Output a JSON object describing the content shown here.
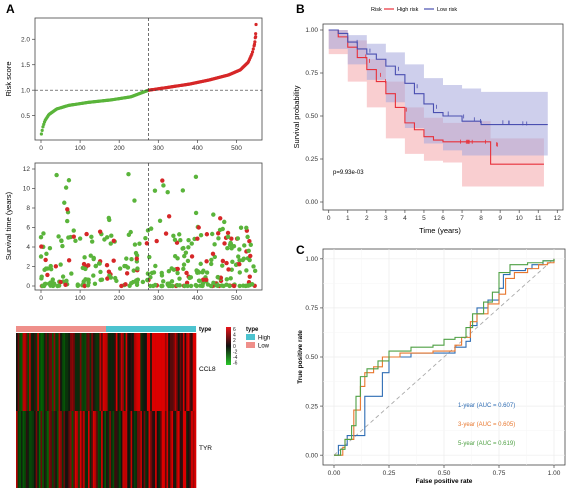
{
  "panels": {
    "A": "A",
    "B": "B",
    "C": "C"
  },
  "colors": {
    "high": "#d62728",
    "low": "#5ab43b",
    "km_high": "#e8303a",
    "km_low": "#4a4fb0",
    "km_high_band": "#f4a6a9",
    "km_low_band": "#a5a8dd",
    "roc_1": "#2f6db4",
    "roc_3": "#e8772e",
    "roc_5": "#4fa044",
    "heat_type_high": "#4cc3cf",
    "heat_type_low": "#ef8f8a"
  },
  "chart_data": [
    {
      "type": "scatter",
      "id": "risk-score",
      "ylabel": "Risk score",
      "xticks": [
        0,
        100,
        200,
        300,
        400,
        500
      ],
      "yticks": [
        "0.5",
        "1.0",
        "1.5",
        "2.0"
      ],
      "xlim": [
        0,
        555
      ],
      "ylim": [
        0.1,
        2.3
      ],
      "cutoff_x": 275,
      "cutoff_y": 1.0,
      "n_low": 275,
      "n_high": 275,
      "curve_low": [
        [
          1,
          0.14
        ],
        [
          5,
          0.28
        ],
        [
          10,
          0.4
        ],
        [
          20,
          0.52
        ],
        [
          40,
          0.63
        ],
        [
          70,
          0.7
        ],
        [
          120,
          0.76
        ],
        [
          180,
          0.81
        ],
        [
          230,
          0.87
        ],
        [
          275,
          1.0
        ]
      ],
      "curve_high": [
        [
          276,
          1.0
        ],
        [
          320,
          1.05
        ],
        [
          380,
          1.12
        ],
        [
          430,
          1.2
        ],
        [
          480,
          1.3
        ],
        [
          510,
          1.4
        ],
        [
          530,
          1.55
        ],
        [
          540,
          1.72
        ],
        [
          546,
          1.9
        ],
        [
          549,
          2.05
        ],
        [
          550,
          2.2
        ]
      ]
    },
    {
      "type": "scatter",
      "id": "survival-time",
      "ylabel": "Survival time (years)",
      "xticks": [
        0,
        100,
        200,
        300,
        400,
        500
      ],
      "yticks": [
        "0",
        "2",
        "4",
        "6",
        "8",
        "10",
        "12"
      ],
      "xlim": [
        0,
        555
      ],
      "ylim": [
        0,
        12
      ],
      "cutoff_x": 275
    },
    {
      "type": "heatmap",
      "id": "expression-heatmap",
      "rows": [
        "CCL8",
        "TYR"
      ],
      "annotation": {
        "title": "type",
        "levels": [
          "High",
          "Low"
        ]
      },
      "scale_ticks": [
        "6",
        "4",
        "2",
        "0",
        "-2",
        "-4",
        "-6"
      ],
      "n_low": 275,
      "n_high": 275
    },
    {
      "type": "line",
      "id": "km-curve",
      "title": "Risk",
      "legend": [
        "High risk",
        "Low risk"
      ],
      "xlabel": "Time (years)",
      "ylabel": "Survival probability",
      "xticks": [
        0,
        1,
        2,
        3,
        4,
        5,
        6,
        7,
        8,
        9,
        10,
        11,
        12
      ],
      "yticks": [
        "0.00",
        "0.25",
        "0.50",
        "0.75",
        "1.00"
      ],
      "xlim": [
        -0.3,
        12.3
      ],
      "ylim": [
        0,
        1.0
      ],
      "pvalue": "p=9.93e-03",
      "series": [
        {
          "name": "High risk",
          "steps": [
            [
              0,
              1.0
            ],
            [
              0.5,
              0.96
            ],
            [
              1,
              0.9
            ],
            [
              1.5,
              0.84
            ],
            [
              2,
              0.77
            ],
            [
              2.5,
              0.7
            ],
            [
              3,
              0.63
            ],
            [
              3.5,
              0.55
            ],
            [
              4,
              0.46
            ],
            [
              4.5,
              0.42
            ],
            [
              5,
              0.38
            ],
            [
              5.5,
              0.36
            ],
            [
              6,
              0.35
            ],
            [
              7,
              0.35
            ],
            [
              8.5,
              0.22
            ],
            [
              11.3,
              0.22
            ]
          ],
          "upper": [
            [
              0,
              1.0
            ],
            [
              1,
              0.94
            ],
            [
              2,
              0.83
            ],
            [
              3,
              0.7
            ],
            [
              4,
              0.55
            ],
            [
              5,
              0.49
            ],
            [
              6,
              0.46
            ],
            [
              7,
              0.47
            ],
            [
              8.5,
              0.37
            ],
            [
              11.3,
              0.37
            ]
          ],
          "lower": [
            [
              0,
              1.0
            ],
            [
              1,
              0.86
            ],
            [
              2,
              0.7
            ],
            [
              3,
              0.55
            ],
            [
              4,
              0.37
            ],
            [
              5,
              0.28
            ],
            [
              6,
              0.24
            ],
            [
              7,
              0.23
            ],
            [
              8.5,
              0.09
            ],
            [
              11.3,
              0.09
            ]
          ]
        },
        {
          "name": "Low risk",
          "steps": [
            [
              0,
              1.0
            ],
            [
              0.5,
              0.98
            ],
            [
              1,
              0.93
            ],
            [
              1.5,
              0.89
            ],
            [
              2,
              0.86
            ],
            [
              2.5,
              0.83
            ],
            [
              3,
              0.79
            ],
            [
              3.5,
              0.74
            ],
            [
              4,
              0.69
            ],
            [
              4.5,
              0.63
            ],
            [
              5,
              0.57
            ],
            [
              5.5,
              0.52
            ],
            [
              6,
              0.5
            ],
            [
              7,
              0.47
            ],
            [
              8,
              0.45
            ],
            [
              11.5,
              0.45
            ]
          ],
          "upper": [
            [
              0,
              1.0
            ],
            [
              1,
              0.97
            ],
            [
              2,
              0.92
            ],
            [
              3,
              0.87
            ],
            [
              4,
              0.8
            ],
            [
              5,
              0.72
            ],
            [
              6,
              0.68
            ],
            [
              7,
              0.66
            ],
            [
              8,
              0.64
            ],
            [
              11.5,
              0.64
            ]
          ],
          "lower": [
            [
              0,
              1.0
            ],
            [
              1,
              0.89
            ],
            [
              2,
              0.8
            ],
            [
              3,
              0.71
            ],
            [
              4,
              0.58
            ],
            [
              5,
              0.43
            ],
            [
              6,
              0.34
            ],
            [
              7,
              0.3
            ],
            [
              8,
              0.27
            ],
            [
              11.5,
              0.27
            ]
          ]
        }
      ]
    },
    {
      "type": "line",
      "id": "roc-curve",
      "xlabel": "False positive rate",
      "ylabel": "True positive rate",
      "xticks": [
        "0.00",
        "0.25",
        "0.50",
        "0.75",
        "1.00"
      ],
      "yticks": [
        "0.00",
        "0.25",
        "0.50",
        "0.75",
        "1.00"
      ],
      "xlim": [
        -0.05,
        1.05
      ],
      "ylim": [
        -0.05,
        1.05
      ],
      "series": [
        {
          "name": "1-year (AUC = 0.607)",
          "points": [
            [
              0,
              0
            ],
            [
              0.02,
              0.05
            ],
            [
              0.06,
              0.05
            ],
            [
              0.06,
              0.1
            ],
            [
              0.12,
              0.1
            ],
            [
              0.14,
              0.2
            ],
            [
              0.14,
              0.3
            ],
            [
              0.2,
              0.3
            ],
            [
              0.22,
              0.42
            ],
            [
              0.25,
              0.5
            ],
            [
              0.35,
              0.52
            ],
            [
              0.5,
              0.52
            ],
            [
              0.55,
              0.55
            ],
            [
              0.6,
              0.58
            ],
            [
              0.62,
              0.66
            ],
            [
              0.65,
              0.75
            ],
            [
              0.7,
              0.79
            ],
            [
              0.75,
              0.85
            ],
            [
              0.77,
              0.92
            ],
            [
              0.8,
              0.94
            ],
            [
              0.87,
              0.95
            ],
            [
              0.9,
              0.97
            ],
            [
              0.95,
              0.99
            ],
            [
              1,
              1
            ]
          ]
        },
        {
          "name": "3-year (AUC = 0.605)",
          "points": [
            [
              0,
              0
            ],
            [
              0.04,
              0.04
            ],
            [
              0.05,
              0.08
            ],
            [
              0.09,
              0.1
            ],
            [
              0.09,
              0.23
            ],
            [
              0.12,
              0.35
            ],
            [
              0.14,
              0.42
            ],
            [
              0.18,
              0.45
            ],
            [
              0.22,
              0.5
            ],
            [
              0.3,
              0.52
            ],
            [
              0.45,
              0.53
            ],
            [
              0.55,
              0.56
            ],
            [
              0.58,
              0.6
            ],
            [
              0.62,
              0.68
            ],
            [
              0.65,
              0.72
            ],
            [
              0.7,
              0.77
            ],
            [
              0.75,
              0.82
            ],
            [
              0.78,
              0.9
            ],
            [
              0.82,
              0.93
            ],
            [
              0.88,
              0.95
            ],
            [
              0.93,
              0.97
            ],
            [
              0.97,
              0.98
            ],
            [
              1,
              1
            ]
          ]
        },
        {
          "name": "5-year (AUC = 0.619)",
          "points": [
            [
              0,
              0
            ],
            [
              0.03,
              0.03
            ],
            [
              0.05,
              0.08
            ],
            [
              0.08,
              0.15
            ],
            [
              0.1,
              0.3
            ],
            [
              0.12,
              0.4
            ],
            [
              0.15,
              0.44
            ],
            [
              0.2,
              0.48
            ],
            [
              0.25,
              0.53
            ],
            [
              0.35,
              0.55
            ],
            [
              0.45,
              0.56
            ],
            [
              0.5,
              0.59
            ],
            [
              0.55,
              0.6
            ],
            [
              0.6,
              0.65
            ],
            [
              0.63,
              0.72
            ],
            [
              0.68,
              0.78
            ],
            [
              0.72,
              0.83
            ],
            [
              0.75,
              0.93
            ],
            [
              0.8,
              0.97
            ],
            [
              0.88,
              0.98
            ],
            [
              0.95,
              0.99
            ],
            [
              1,
              1
            ]
          ]
        }
      ],
      "auc_labels": [
        "1-year (AUC = 0.607)",
        "3-year (AUC = 0.605)",
        "5-year (AUC = 0.619)"
      ]
    }
  ]
}
